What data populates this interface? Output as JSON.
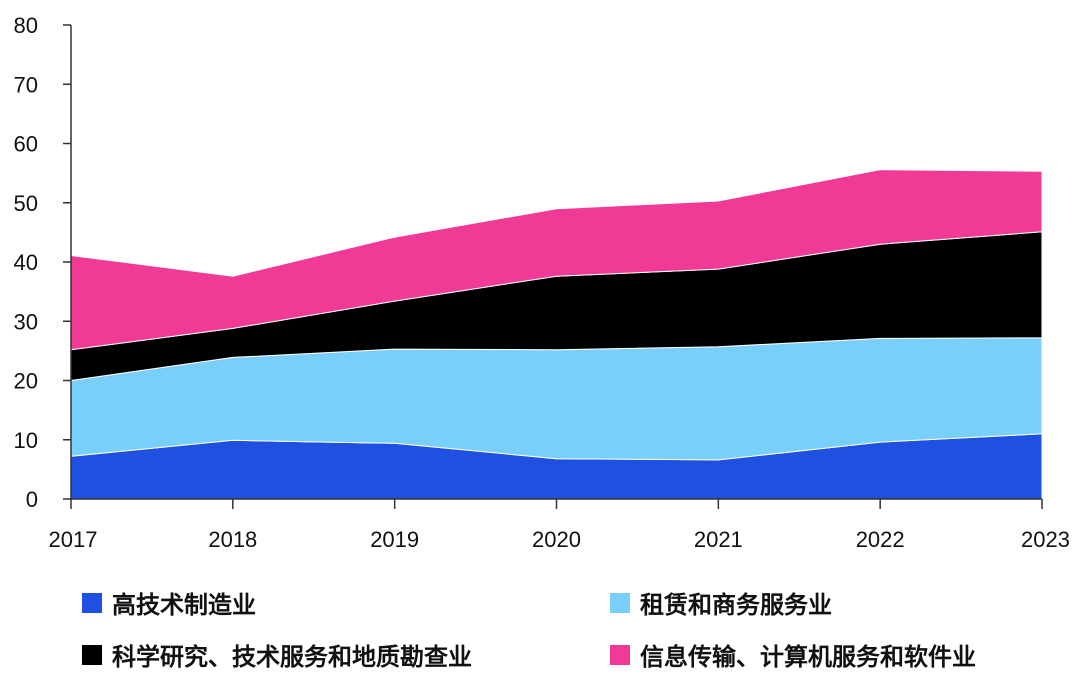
{
  "chart_data": {
    "type": "area",
    "stacked": true,
    "x": [
      "2017",
      "2018",
      "2019",
      "2020",
      "2021",
      "2022",
      "2023"
    ],
    "yticks": [
      "0",
      "10",
      "20",
      "30",
      "40",
      "50",
      "60",
      "70",
      "80"
    ],
    "ylim": [
      0,
      80
    ],
    "grid": false,
    "legend_position": "bottom",
    "series": [
      {
        "name": "高技术制造业",
        "color": "#2050e0",
        "values": [
          7.2,
          9.9,
          9.4,
          6.8,
          6.6,
          9.6,
          11.0
        ]
      },
      {
        "name": "租赁和商务服务业",
        "color": "#78d0fa",
        "values": [
          12.8,
          14.0,
          15.9,
          18.4,
          19.1,
          17.5,
          16.2
        ]
      },
      {
        "name": "科学研究、技术服务和地质勘查业",
        "color": "#000000",
        "values": [
          5.2,
          4.9,
          8.1,
          12.4,
          13.1,
          15.9,
          17.9
        ]
      },
      {
        "name": "信息传输、计算机服务和软件业",
        "color": "#f03a96",
        "values": [
          15.9,
          8.8,
          10.8,
          11.4,
          11.5,
          12.6,
          10.2
        ]
      }
    ]
  }
}
